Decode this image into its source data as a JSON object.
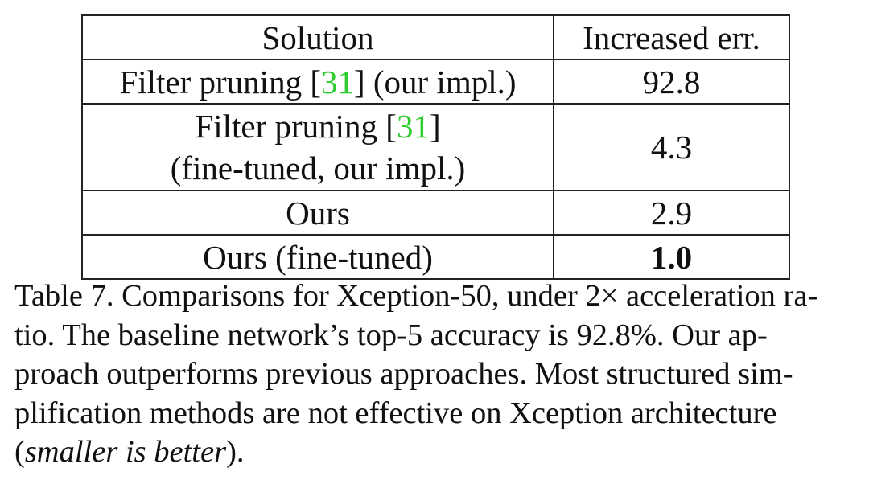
{
  "table": {
    "headers": [
      "Solution",
      "Increased err."
    ],
    "rows": [
      {
        "solution_main": "Filter pruning [",
        "citation": "31",
        "solution_tail": "] (our impl.)",
        "solution_line2": "",
        "value": "92.8"
      },
      {
        "solution_main": "Filter pruning [",
        "citation": "31",
        "solution_tail": "]",
        "solution_line2": "(fine-tuned, our impl.)",
        "value": "4.3"
      },
      {
        "solution_main": "Ours",
        "value": "2.9"
      },
      {
        "solution_main": "Ours (fine-tuned)",
        "value": "1.0"
      }
    ]
  },
  "caption": {
    "line1": "Table 7. Comparisons for Xception-50, under 2× acceleration ra-",
    "line2": "tio.  The baseline network’s top-5 accuracy is 92.8%.  Our ap-",
    "line3": "proach outperforms previous approaches.  Most structured sim-",
    "line4": "plification methods are not effective on Xception architecture",
    "line5_open": "(",
    "line5_italic": "smaller is better",
    "line5_close": ")."
  },
  "colors": {
    "citation": "#2ecc2e",
    "border": "#222222",
    "text": "#111111"
  }
}
